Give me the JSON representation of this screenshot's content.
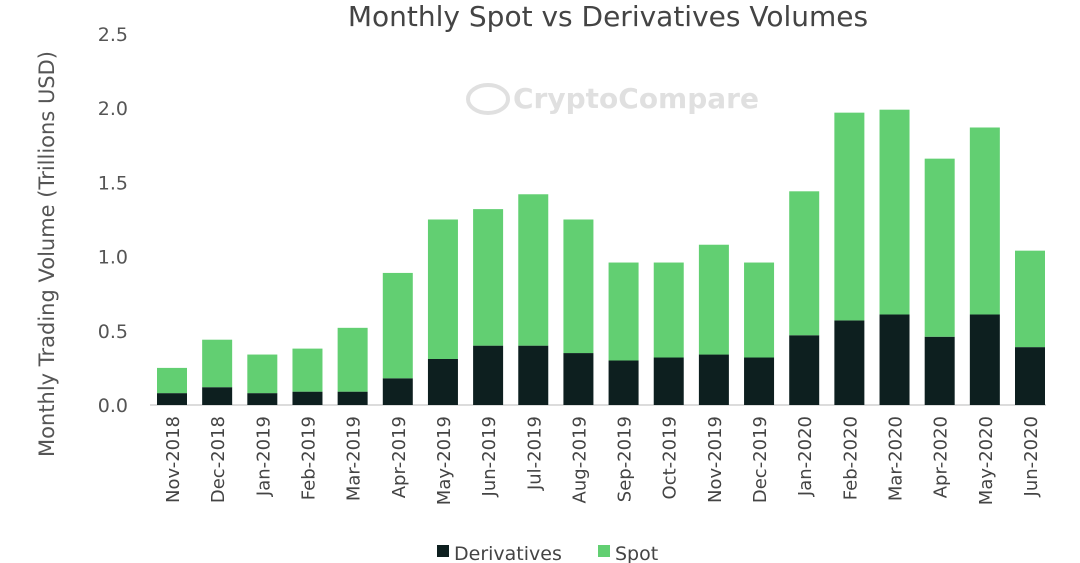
{
  "chart_data": {
    "type": "bar",
    "stacked": true,
    "title": "Monthly Spot vs Derivatives Volumes",
    "xlabel": "",
    "ylabel": "Monthly Trading Volume (Trillions USD)",
    "ylim": [
      0,
      2.5
    ],
    "yticks": [
      "0.0",
      "0.5",
      "1.0",
      "1.5",
      "2.0",
      "2.5"
    ],
    "grid": false,
    "legend_position": "bottom",
    "watermark": "CryptoCompare",
    "categories": [
      "Nov-2018",
      "Dec-2018",
      "Jan-2019",
      "Feb-2019",
      "Mar-2019",
      "Apr-2019",
      "May-2019",
      "Jun-2019",
      "Jul-2019",
      "Aug-2019",
      "Sep-2019",
      "Oct-2019",
      "Nov-2019",
      "Dec-2019",
      "Jan-2020",
      "Feb-2020",
      "Mar-2020",
      "Apr-2020",
      "May-2020",
      "Jun-2020"
    ],
    "series": [
      {
        "name": "Derivatives",
        "color": "#0d1f1f",
        "values": [
          0.08,
          0.12,
          0.08,
          0.09,
          0.09,
          0.18,
          0.31,
          0.4,
          0.4,
          0.35,
          0.3,
          0.32,
          0.34,
          0.32,
          0.47,
          0.57,
          0.61,
          0.46,
          0.61,
          0.39
        ]
      },
      {
        "name": "Spot",
        "color": "#62cf72",
        "values": [
          0.17,
          0.32,
          0.26,
          0.29,
          0.43,
          0.71,
          0.94,
          0.92,
          1.02,
          0.9,
          0.66,
          0.64,
          0.74,
          0.64,
          0.97,
          1.4,
          1.38,
          1.2,
          1.26,
          0.65
        ]
      }
    ]
  }
}
